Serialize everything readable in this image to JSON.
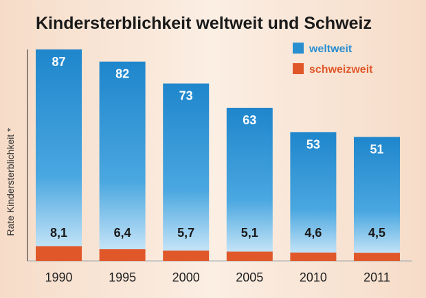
{
  "chart_data": {
    "type": "bar",
    "title": "Kindersterblichkeit weltweit und Schweiz",
    "ylabel": "Rate Kindersterblichkeit *",
    "xlabel": "",
    "categories": [
      "1990",
      "1995",
      "2000",
      "2005",
      "2010",
      "2011"
    ],
    "series": [
      {
        "name": "weltweit",
        "values": [
          87,
          82,
          73,
          63,
          53,
          51
        ],
        "labels": [
          "87",
          "82",
          "73",
          "63",
          "53",
          "51"
        ],
        "color": "#2a8fd0"
      },
      {
        "name": "schweizweit",
        "values": [
          8.1,
          6.4,
          5.7,
          5.1,
          4.6,
          4.5
        ],
        "labels": [
          "8,1",
          "6,4",
          "5,7",
          "5,1",
          "4,6",
          "4,5"
        ],
        "color": "#e0582a"
      }
    ],
    "legend_position": "top-right",
    "grid": false
  }
}
